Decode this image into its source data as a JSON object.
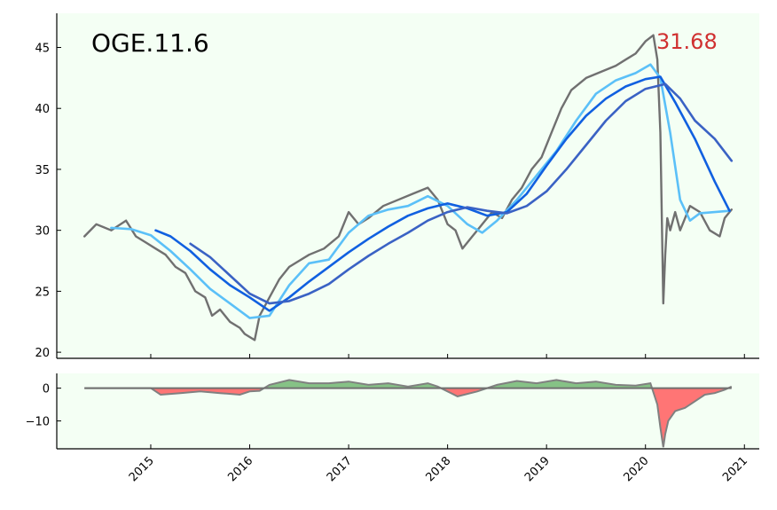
{
  "chart_data": [
    {
      "type": "line",
      "title": "OGE.11.6",
      "last_value_label": "31.68",
      "xlim": [
        2014.05,
        2021.15
      ],
      "ylim": [
        19.5,
        47.8
      ],
      "x_ticks": [
        "2015",
        "2016",
        "2017",
        "2018",
        "2019",
        "2020",
        "2021"
      ],
      "y_ticks": [
        "20",
        "25",
        "30",
        "35",
        "40",
        "45"
      ],
      "grid": false,
      "colors": {
        "price": "#707070",
        "ma_fast": "#5bc0f8",
        "ma_mid": "#1060e0",
        "ma_slow": "#3a62c4",
        "background": "#f4fff4",
        "last_label": "#d03030"
      },
      "series": [
        {
          "key": "price",
          "x": [
            2014.33,
            2014.45,
            2014.6,
            2014.75,
            2014.85,
            2014.95,
            2015.05,
            2015.15,
            2015.25,
            2015.35,
            2015.45,
            2015.55,
            2015.62,
            2015.7,
            2015.8,
            2015.9,
            2015.95,
            2016.05,
            2016.1,
            2016.2,
            2016.3,
            2016.4,
            2016.5,
            2016.6,
            2016.75,
            2016.9,
            2017.0,
            2017.1,
            2017.2,
            2017.35,
            2017.5,
            2017.65,
            2017.8,
            2017.9,
            2018.0,
            2018.08,
            2018.15,
            2018.25,
            2018.35,
            2018.45,
            2018.55,
            2018.65,
            2018.75,
            2018.85,
            2018.95,
            2019.05,
            2019.15,
            2019.25,
            2019.4,
            2019.55,
            2019.7,
            2019.8,
            2019.9,
            2020.0,
            2020.08,
            2020.12,
            2020.15,
            2020.18,
            2020.2,
            2020.22,
            2020.25,
            2020.3,
            2020.35,
            2020.45,
            2020.55,
            2020.65,
            2020.75,
            2020.8,
            2020.87
          ],
          "values": [
            29.5,
            30.5,
            30.0,
            30.8,
            29.5,
            29.0,
            28.5,
            28.0,
            27.0,
            26.5,
            25.0,
            24.5,
            23.0,
            23.5,
            22.5,
            22.0,
            21.5,
            21.0,
            23.0,
            24.5,
            26.0,
            27.0,
            27.5,
            28.0,
            28.5,
            29.5,
            31.5,
            30.5,
            31.0,
            32.0,
            32.5,
            33.0,
            33.5,
            32.5,
            30.5,
            30.0,
            28.5,
            29.5,
            30.5,
            31.5,
            31.0,
            32.5,
            33.5,
            35.0,
            36.0,
            38.0,
            40.0,
            41.5,
            42.5,
            43.0,
            43.5,
            44.0,
            44.5,
            45.5,
            46.0,
            44.0,
            38.0,
            24.0,
            28.0,
            31.0,
            30.0,
            31.5,
            30.0,
            32.0,
            31.5,
            30.0,
            29.5,
            31.0,
            31.7
          ]
        },
        {
          "key": "ma_fast",
          "x": [
            2014.6,
            2014.8,
            2015.0,
            2015.2,
            2015.4,
            2015.6,
            2015.8,
            2016.0,
            2016.2,
            2016.4,
            2016.6,
            2016.8,
            2017.0,
            2017.2,
            2017.4,
            2017.6,
            2017.8,
            2018.0,
            2018.2,
            2018.35,
            2018.5,
            2018.7,
            2018.9,
            2019.1,
            2019.3,
            2019.5,
            2019.7,
            2019.9,
            2020.05,
            2020.15,
            2020.25,
            2020.35,
            2020.45,
            2020.55,
            2020.7,
            2020.85
          ],
          "values": [
            30.2,
            30.1,
            29.6,
            28.3,
            26.8,
            25.2,
            24.0,
            22.8,
            23.0,
            25.5,
            27.3,
            27.6,
            29.8,
            31.2,
            31.7,
            32.0,
            32.8,
            32.0,
            30.5,
            29.8,
            30.8,
            32.5,
            34.5,
            36.5,
            39.0,
            41.2,
            42.3,
            42.9,
            43.6,
            42.5,
            38.0,
            32.5,
            30.8,
            31.4,
            31.5,
            31.6
          ]
        },
        {
          "key": "ma_mid",
          "x": [
            2015.05,
            2015.2,
            2015.4,
            2015.6,
            2015.8,
            2016.0,
            2016.2,
            2016.4,
            2016.6,
            2016.8,
            2017.0,
            2017.2,
            2017.4,
            2017.6,
            2017.8,
            2018.0,
            2018.2,
            2018.4,
            2018.6,
            2018.8,
            2019.0,
            2019.2,
            2019.4,
            2019.6,
            2019.8,
            2020.0,
            2020.15,
            2020.3,
            2020.5,
            2020.7,
            2020.85
          ],
          "values": [
            30.0,
            29.5,
            28.3,
            26.8,
            25.5,
            24.5,
            23.4,
            24.5,
            25.8,
            27.0,
            28.2,
            29.3,
            30.3,
            31.2,
            31.8,
            32.2,
            31.8,
            31.2,
            31.5,
            33.0,
            35.3,
            37.5,
            39.4,
            40.8,
            41.8,
            42.4,
            42.6,
            40.5,
            37.5,
            34.0,
            31.6
          ]
        },
        {
          "key": "ma_slow",
          "x": [
            2015.4,
            2015.6,
            2015.8,
            2016.0,
            2016.2,
            2016.4,
            2016.6,
            2016.8,
            2017.0,
            2017.2,
            2017.4,
            2017.6,
            2017.8,
            2018.0,
            2018.2,
            2018.4,
            2018.6,
            2018.8,
            2019.0,
            2019.2,
            2019.4,
            2019.6,
            2019.8,
            2020.0,
            2020.2,
            2020.35,
            2020.5,
            2020.7,
            2020.87
          ],
          "values": [
            28.9,
            27.8,
            26.3,
            24.8,
            24.0,
            24.2,
            24.8,
            25.6,
            26.8,
            27.9,
            28.9,
            29.8,
            30.8,
            31.5,
            31.9,
            31.6,
            31.4,
            32.0,
            33.2,
            35.0,
            37.0,
            39.0,
            40.6,
            41.6,
            42.0,
            40.8,
            39.0,
            37.5,
            35.7
          ]
        }
      ]
    },
    {
      "type": "area",
      "xlim": [
        2014.05,
        2021.15
      ],
      "ylim": [
        -18.5,
        4.5
      ],
      "y_ticks": [
        "0",
        "−10"
      ],
      "grid": false,
      "colors": {
        "positive": "#86c286",
        "negative": "#ff7575",
        "line": "#808080",
        "zero": "#707070"
      },
      "series": [
        {
          "key": "oscillator",
          "x": [
            2014.33,
            2015.0,
            2015.1,
            2015.3,
            2015.5,
            2015.7,
            2015.9,
            2016.0,
            2016.1,
            2016.2,
            2016.4,
            2016.6,
            2016.8,
            2017.0,
            2017.2,
            2017.4,
            2017.6,
            2017.8,
            2017.9,
            2018.0,
            2018.1,
            2018.3,
            2018.5,
            2018.7,
            2018.9,
            2019.1,
            2019.3,
            2019.5,
            2019.7,
            2019.9,
            2020.05,
            2020.12,
            2020.15,
            2020.18,
            2020.2,
            2020.23,
            2020.3,
            2020.4,
            2020.5,
            2020.6,
            2020.7,
            2020.8,
            2020.87
          ],
          "values": [
            0,
            0,
            -2,
            -1.5,
            -1,
            -1.5,
            -2,
            -1,
            -0.8,
            1,
            2.5,
            1.5,
            1.5,
            2,
            1,
            1.5,
            0.5,
            1.5,
            0.5,
            -1,
            -2.5,
            -1,
            1,
            2.2,
            1.5,
            2.5,
            1.5,
            2,
            1,
            0.8,
            1.5,
            -5,
            -12,
            -18,
            -14,
            -10,
            -7,
            -6,
            -4,
            -2,
            -1.5,
            -0.5,
            0.5
          ]
        }
      ]
    }
  ]
}
